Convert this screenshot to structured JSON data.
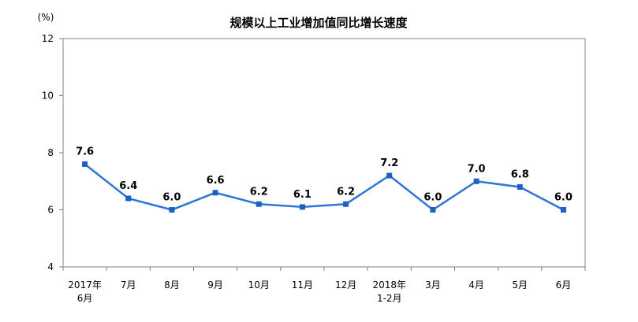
{
  "chart_data": {
    "type": "line",
    "title": "规模以上工业增加值同比增长速度",
    "unit": "(%)",
    "xlabel": "",
    "ylabel": "",
    "ylim": [
      4,
      12
    ],
    "yticks": [
      "4",
      "6",
      "8",
      "10",
      "12"
    ],
    "grid": false,
    "legend": "none",
    "categories": [
      [
        "2017年",
        "6月"
      ],
      [
        "7月"
      ],
      [
        "8月"
      ],
      [
        "9月"
      ],
      [
        "10月"
      ],
      [
        "11月"
      ],
      [
        "12月"
      ],
      [
        "2018年",
        "1-2月"
      ],
      [
        "3月"
      ],
      [
        "4月"
      ],
      [
        "5月"
      ],
      [
        "6月"
      ]
    ],
    "values": [
      7.6,
      6.4,
      6.0,
      6.6,
      6.2,
      6.1,
      6.2,
      7.2,
      6.0,
      7.0,
      6.8,
      6.0
    ],
    "data_labels": [
      "7.6",
      "6.4",
      "6.0",
      "6.6",
      "6.2",
      "6.1",
      "6.2",
      "7.2",
      "6.0",
      "7.0",
      "6.8",
      "6.0"
    ],
    "line_color": "#2E75D6",
    "marker_color": "#1E5FC2",
    "axis_color": "#808080",
    "frame_color": "#808080"
  }
}
